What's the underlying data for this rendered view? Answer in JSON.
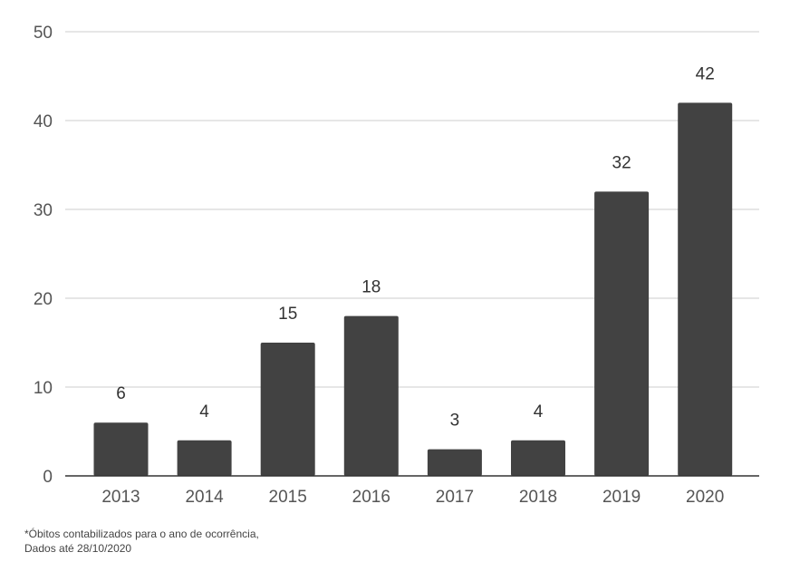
{
  "chart_data": {
    "type": "bar",
    "categories": [
      "2013",
      "2014",
      "2015",
      "2016",
      "2017",
      "2018",
      "2019",
      "2020"
    ],
    "values": [
      6,
      4,
      15,
      18,
      3,
      4,
      32,
      42
    ],
    "title": "",
    "xlabel": "",
    "ylabel": "",
    "ylim": [
      0,
      50
    ],
    "yticks": [
      0,
      10,
      20,
      30,
      40,
      50
    ],
    "data_labels": true,
    "grid": true,
    "legend": "none",
    "bar_color": "#424242"
  },
  "footnote": {
    "line1": "*Óbitos contabilizados para o ano de ocorrência,",
    "line2": "Dados até 28/10/2020"
  }
}
